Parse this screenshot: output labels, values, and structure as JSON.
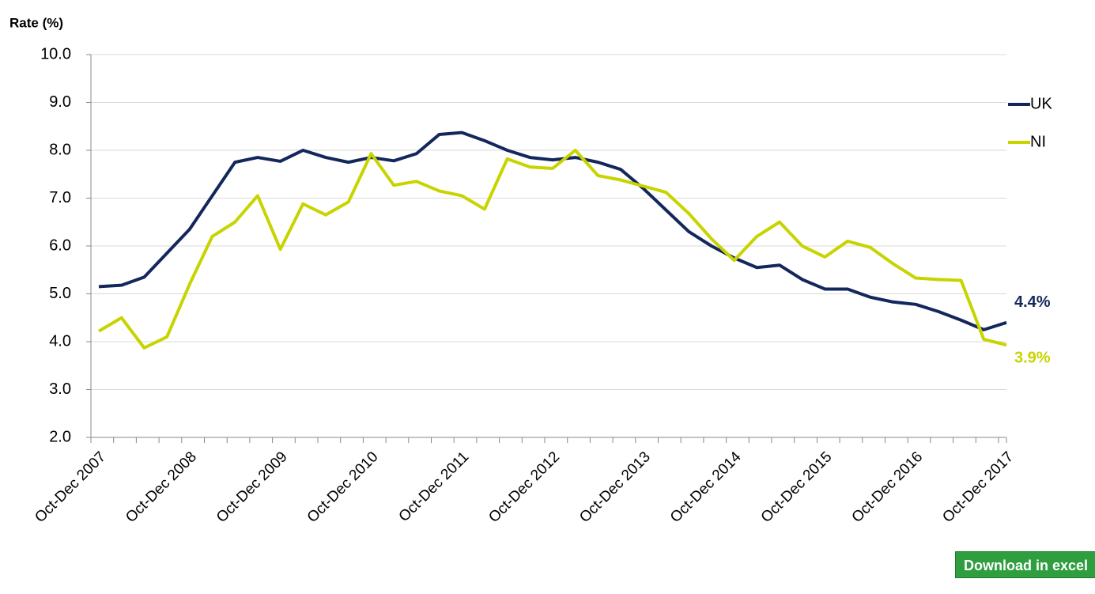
{
  "chart_data": {
    "type": "line",
    "y_label": "Rate (%)",
    "categories": [
      "Oct-Dec 2007",
      null,
      null,
      null,
      "Oct-Dec 2008",
      null,
      null,
      null,
      "Oct-Dec 2009",
      null,
      null,
      null,
      "Oct-Dec 2010",
      null,
      null,
      null,
      "Oct-Dec 2011",
      null,
      null,
      null,
      "Oct-Dec 2012",
      null,
      null,
      null,
      "Oct-Dec 2013",
      null,
      null,
      null,
      "Oct-Dec 2014",
      null,
      null,
      null,
      "Oct-Dec 2015",
      null,
      null,
      null,
      "Oct-Dec 2016",
      null,
      null,
      null,
      "Oct-Dec 2017"
    ],
    "series": [
      {
        "name": "UK",
        "color": "#13275c",
        "end_label": "4.4%",
        "values": [
          5.15,
          5.18,
          5.35,
          5.85,
          6.35,
          7.05,
          7.75,
          7.85,
          7.77,
          8.0,
          7.85,
          7.75,
          7.85,
          7.78,
          7.93,
          8.33,
          8.37,
          8.2,
          8.0,
          7.85,
          7.8,
          7.85,
          7.75,
          7.6,
          7.2,
          6.75,
          6.3,
          6.0,
          5.75,
          5.55,
          5.6,
          5.3,
          5.1,
          5.1,
          4.93,
          4.83,
          4.78,
          4.63,
          4.45,
          4.25,
          4.4
        ]
      },
      {
        "name": "NI",
        "color": "#c8d400",
        "end_label": "3.9%",
        "values": [
          4.22,
          4.5,
          3.87,
          4.1,
          5.2,
          6.2,
          6.5,
          7.05,
          5.93,
          6.88,
          6.65,
          6.92,
          7.93,
          7.27,
          7.35,
          7.15,
          7.05,
          6.77,
          7.82,
          7.65,
          7.62,
          8.0,
          7.47,
          7.38,
          7.25,
          7.12,
          6.68,
          6.15,
          5.7,
          6.2,
          6.5,
          6.0,
          5.77,
          6.1,
          5.97,
          5.63,
          5.33,
          5.3,
          5.28,
          4.05,
          3.93
        ]
      }
    ],
    "ylim": [
      2,
      10
    ],
    "yticks": [
      {
        "value": 2,
        "label": "2.0"
      },
      {
        "value": 3,
        "label": "3.0"
      },
      {
        "value": 4,
        "label": "4.0"
      },
      {
        "value": 5,
        "label": "5.0"
      },
      {
        "value": 6,
        "label": "6.0"
      },
      {
        "value": 7,
        "label": "7.0"
      },
      {
        "value": 8,
        "label": "8.0"
      },
      {
        "value": 9,
        "label": "9.0"
      },
      {
        "value": 10,
        "label": "10.0"
      }
    ],
    "grid": true,
    "legend": "right"
  },
  "download_button": "Download in excel"
}
